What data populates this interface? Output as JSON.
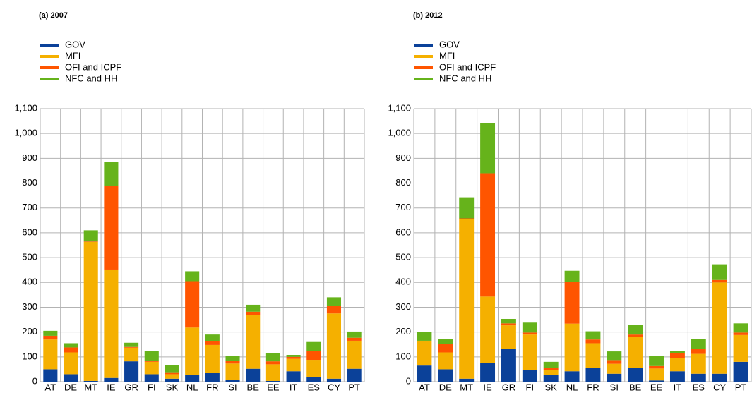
{
  "chart_data": [
    {
      "type": "bar",
      "stacked": true,
      "title": "(a) 2007",
      "legend": "upper left",
      "grid": true,
      "categories": [
        "AT",
        "DE",
        "MT",
        "IE",
        "GR",
        "FI",
        "SK",
        "NL",
        "FR",
        "SI",
        "BE",
        "EE",
        "IT",
        "ES",
        "CY",
        "PT"
      ],
      "ylim": [
        0,
        1100
      ],
      "yticks": [
        0,
        100,
        200,
        300,
        400,
        500,
        600,
        700,
        800,
        900,
        {
          "value": 1000,
          "label": "1,000"
        },
        {
          "value": 1100,
          "label": "1,100"
        }
      ],
      "series": [
        {
          "name": "GOV",
          "color": "#0b4199",
          "values": [
            50,
            30,
            3,
            15,
            82,
            30,
            12,
            28,
            35,
            8,
            52,
            3,
            42,
            18,
            12,
            52
          ]
        },
        {
          "name": "MFI",
          "color": "#f5b000",
          "values": [
            120,
            88,
            560,
            437,
            55,
            50,
            18,
            190,
            113,
            65,
            218,
            67,
            50,
            70,
            263,
            113
          ]
        },
        {
          "name": "OFI and ICPF",
          "color": "#ff5500",
          "values": [
            15,
            20,
            2,
            338,
            3,
            5,
            8,
            187,
            15,
            12,
            12,
            12,
            8,
            37,
            30,
            12
          ]
        },
        {
          "name": "NFC and HH",
          "color": "#66b31b",
          "values": [
            20,
            17,
            45,
            95,
            17,
            40,
            30,
            40,
            27,
            20,
            28,
            32,
            8,
            35,
            35,
            25
          ]
        }
      ]
    },
    {
      "type": "bar",
      "stacked": true,
      "title": "(b) 2012",
      "legend": "upper left",
      "grid": true,
      "categories": [
        "AT",
        "DE",
        "MT",
        "IE",
        "GR",
        "FI",
        "SK",
        "NL",
        "FR",
        "SI",
        "BE",
        "EE",
        "IT",
        "ES",
        "CY",
        "PT"
      ],
      "ylim": [
        0,
        1100
      ],
      "yticks": [
        0,
        100,
        200,
        300,
        400,
        500,
        600,
        700,
        800,
        900,
        {
          "value": 1000,
          "label": "1,000"
        },
        {
          "value": 1100,
          "label": "1,100"
        }
      ],
      "series": [
        {
          "name": "GOV",
          "color": "#0b4199",
          "values": [
            65,
            50,
            12,
            75,
            132,
            47,
            28,
            42,
            55,
            32,
            55,
            5,
            42,
            32,
            32,
            80
          ]
        },
        {
          "name": "MFI",
          "color": "#f5b000",
          "values": [
            98,
            68,
            643,
            268,
            95,
            143,
            20,
            192,
            100,
            40,
            125,
            48,
            52,
            80,
            368,
            108
          ]
        },
        {
          "name": "OFI and ICPF",
          "color": "#ff5500",
          "values": [
            2,
            35,
            3,
            497,
            8,
            8,
            7,
            168,
            15,
            15,
            10,
            10,
            20,
            20,
            10,
            10
          ]
        },
        {
          "name": "NFC and HH",
          "color": "#66b31b",
          "values": [
            35,
            20,
            85,
            203,
            18,
            40,
            25,
            45,
            33,
            35,
            40,
            40,
            10,
            40,
            63,
            37
          ]
        }
      ]
    }
  ]
}
